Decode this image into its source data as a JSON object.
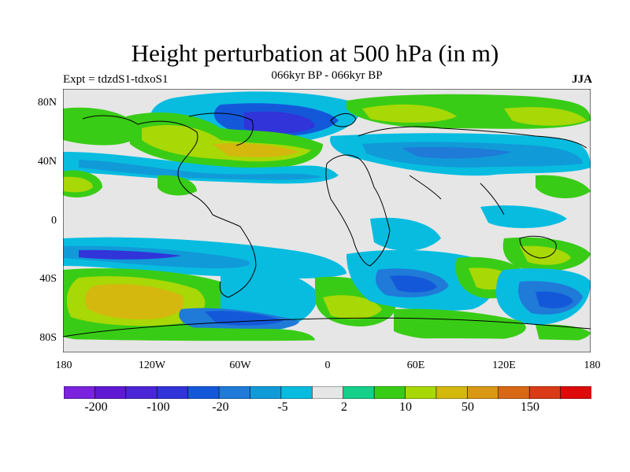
{
  "header": {
    "title": "Height perturbation at 500 hPa (in m)",
    "experiment": "Expt = tdzdS1-tdxoS1",
    "subtitle": "066kyr BP - 066kyr BP",
    "season": "JJA"
  },
  "axes": {
    "y_labels": [
      "80N",
      "40N",
      "0",
      "40S",
      "80S"
    ],
    "x_labels": [
      "180",
      "120W",
      "60W",
      "0",
      "60E",
      "120E",
      "180"
    ]
  },
  "colorbar": {
    "colors": [
      "#7a22dd",
      "#5f19d2",
      "#4a26d6",
      "#3034d9",
      "#1458da",
      "#1f7ad8",
      "#109bd8",
      "#08bce0",
      "#e6e6e6",
      "#14d08a",
      "#39cc16",
      "#a8d806",
      "#d4b80e",
      "#d99714",
      "#d96816",
      "#db3a16",
      "#de0a0a"
    ],
    "labels": [
      "-200",
      "-100",
      "-20",
      "-5",
      "2",
      "10",
      "50",
      "150"
    ]
  },
  "map_colors": {
    "background": "#e6e6e6",
    "coast": "#000000"
  }
}
